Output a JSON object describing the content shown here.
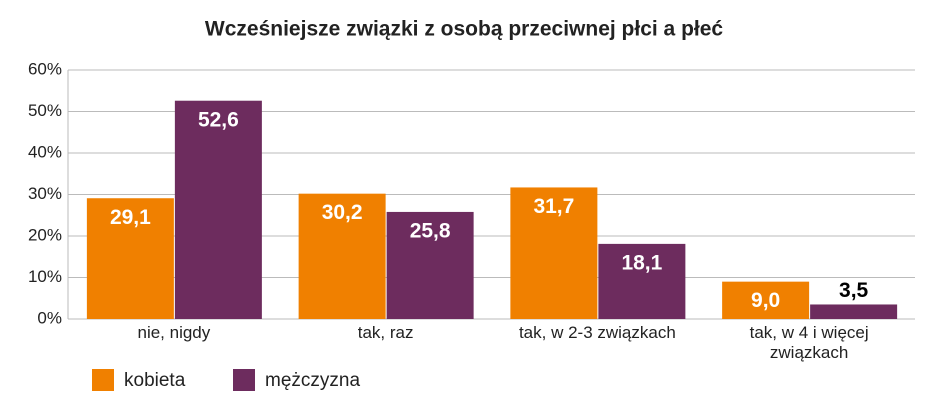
{
  "chart_data": {
    "type": "bar",
    "title": "Wcześniejsze związki z osobą przeciwnej płci a płeć",
    "categories": [
      "nie, nigdy",
      "tak, raz",
      "tak, w 2-3 związkach",
      "tak, w 4 i więcej związkach"
    ],
    "series": [
      {
        "name": "kobieta",
        "color": "#f08000",
        "values": [
          29.1,
          30.2,
          31.7,
          9.0
        ],
        "value_labels": [
          "29,1",
          "30,2",
          "31,7",
          "9,0"
        ]
      },
      {
        "name": "mężczyzna",
        "color": "#6d2c5e",
        "values": [
          52.6,
          25.8,
          18.1,
          3.5
        ],
        "value_labels": [
          "52,6",
          "25,8",
          "18,1",
          "3,5"
        ]
      }
    ],
    "ylim": [
      0,
      60
    ],
    "yticks": [
      {
        "value": 0,
        "label": "0%"
      },
      {
        "value": 10,
        "label": "10%"
      },
      {
        "value": 20,
        "label": "20%"
      },
      {
        "value": 30,
        "label": "30%"
      },
      {
        "value": 40,
        "label": "40%"
      },
      {
        "value": 50,
        "label": "50%"
      },
      {
        "value": 60,
        "label": "60%"
      }
    ],
    "grid": true,
    "legend": "bottom-left"
  }
}
